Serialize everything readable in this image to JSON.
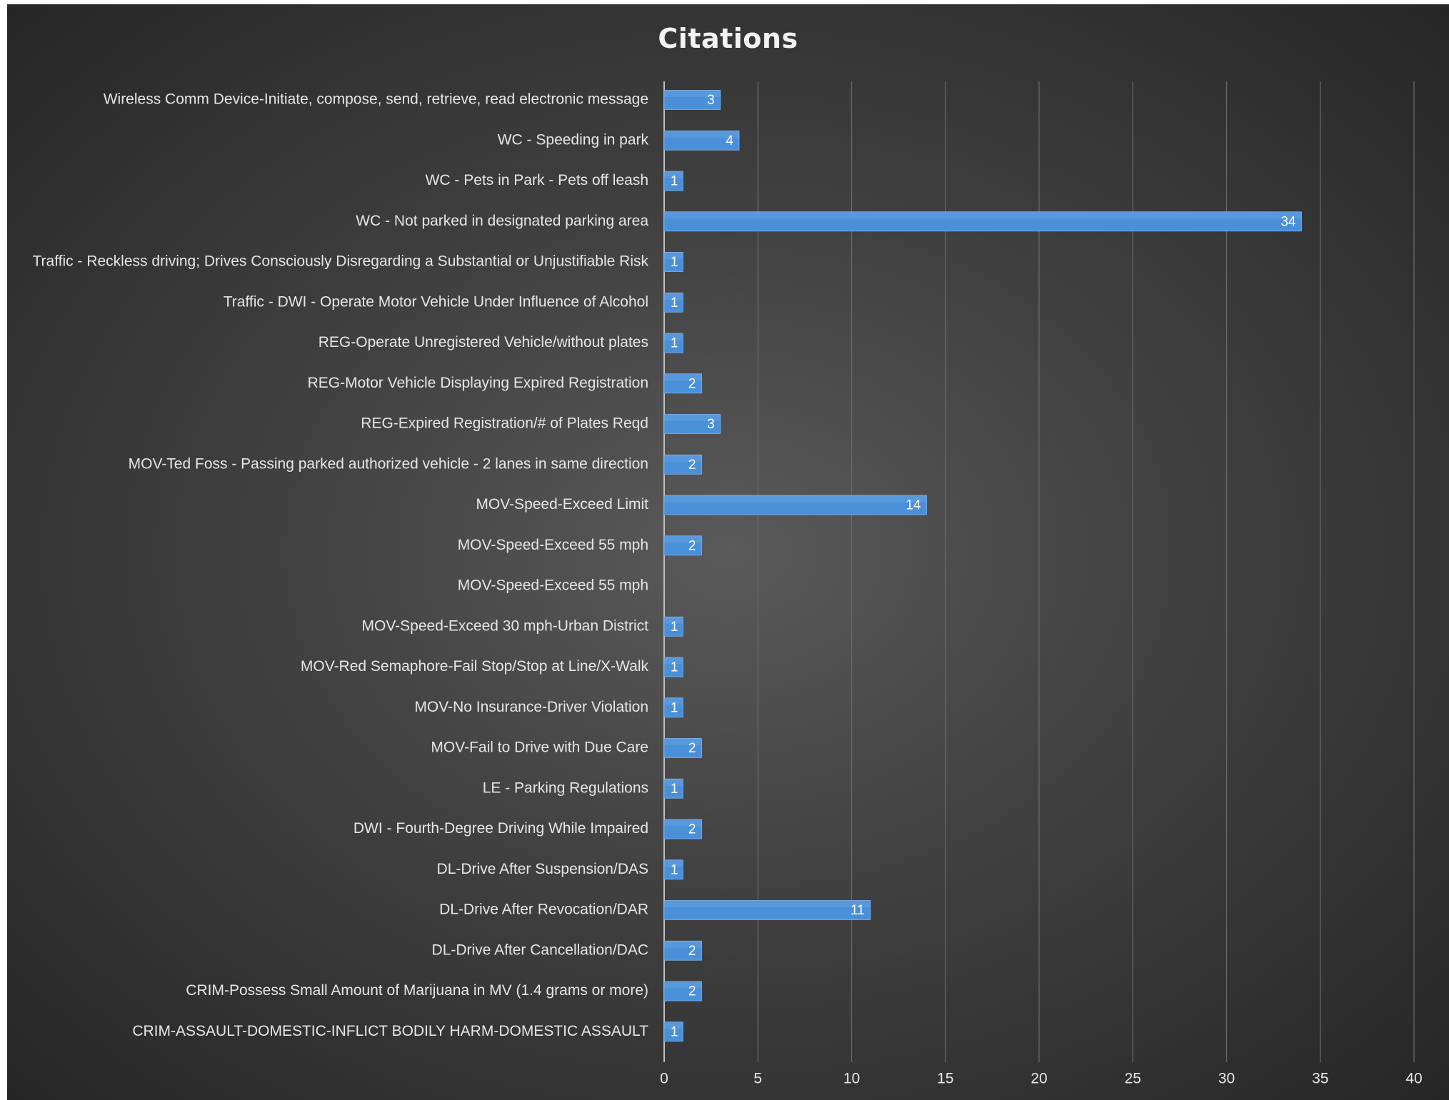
{
  "chart_data": {
    "type": "bar",
    "orientation": "horizontal",
    "title": "Citations",
    "xlabel": "",
    "ylabel": "",
    "xlim": [
      0,
      40
    ],
    "x_ticks": [
      0,
      5,
      10,
      15,
      20,
      25,
      30,
      35,
      40
    ],
    "grid": true,
    "legend": "none",
    "bar_color": "#4a90d9",
    "categories": [
      "Wireless Comm Device-Initiate, compose, send, retrieve, read electronic message",
      "WC - Speeding in park",
      "WC - Pets in Park - Pets off leash",
      "WC - Not parked in designated parking area",
      "Traffic - Reckless driving; Drives Consciously Disregarding a Substantial or Unjustifiable Risk",
      "Traffic - DWI - Operate Motor Vehicle Under Influence of Alcohol",
      "REG-Operate Unregistered Vehicle/without plates",
      "REG-Motor Vehicle Displaying Expired Registration",
      "REG-Expired Registration/# of Plates Reqd",
      "MOV-Ted Foss - Passing parked authorized vehicle - 2 lanes in same direction",
      "MOV-Speed-Exceed Limit",
      "MOV-Speed-Exceed 55 mph",
      "MOV-Speed-Exceed 55 mph",
      "MOV-Speed-Exceed 30 mph-Urban District",
      "MOV-Red Semaphore-Fail Stop/Stop at Line/X-Walk",
      "MOV-No Insurance-Driver Violation",
      "MOV-Fail to Drive with Due Care",
      "LE - Parking Regulations",
      "DWI - Fourth-Degree Driving While Impaired",
      "DL-Drive After Suspension/DAS",
      "DL-Drive After Revocation/DAR",
      "DL-Drive After Cancellation/DAC",
      "CRIM-Possess Small Amount of Marijuana in MV (1.4 grams or more)",
      "CRIM-ASSAULT-DOMESTIC-INFLICT BODILY HARM-DOMESTIC ASSAULT"
    ],
    "values": [
      3,
      4,
      1,
      34,
      1,
      1,
      1,
      2,
      3,
      2,
      14,
      2,
      null,
      1,
      1,
      1,
      2,
      1,
      2,
      1,
      11,
      2,
      2,
      1
    ]
  }
}
